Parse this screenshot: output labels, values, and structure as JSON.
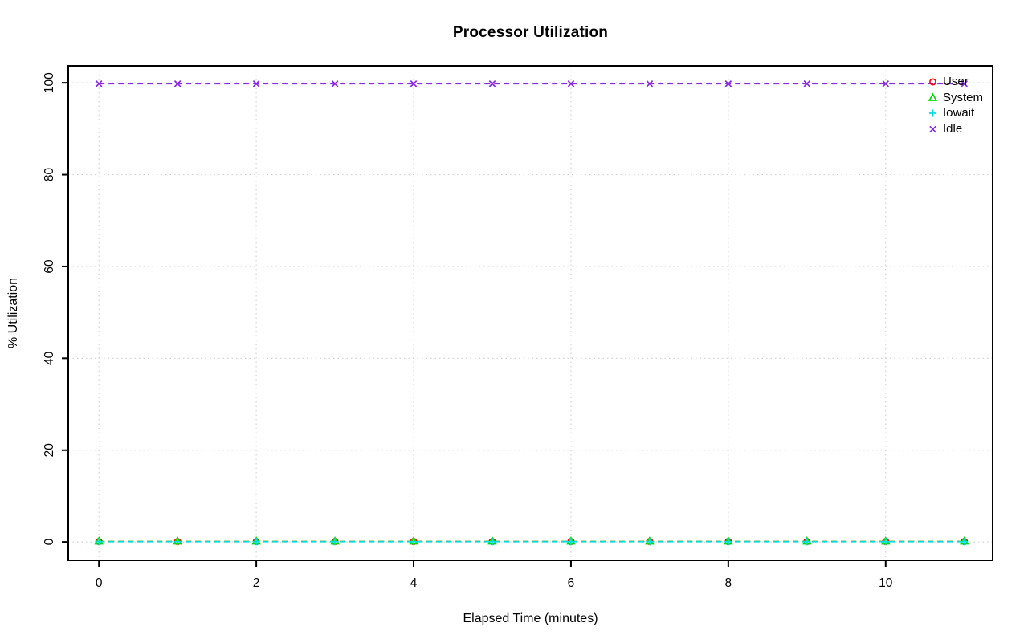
{
  "chart_data": {
    "type": "line",
    "title": "Processor Utilization",
    "xlabel": "Elapsed Time (minutes)",
    "ylabel": "% Utilization",
    "x": [
      0,
      1,
      2,
      3,
      4,
      5,
      6,
      7,
      8,
      9,
      10,
      11
    ],
    "series": [
      {
        "name": "User",
        "color": "#FF0000",
        "marker": "circle",
        "values": [
          0.1,
          0.1,
          0.1,
          0.1,
          0.1,
          0.1,
          0.1,
          0.1,
          0.1,
          0.1,
          0.1,
          0.1
        ]
      },
      {
        "name": "System",
        "color": "#00DD00",
        "marker": "triangle",
        "values": [
          0.1,
          0.1,
          0.1,
          0.1,
          0.1,
          0.1,
          0.1,
          0.1,
          0.1,
          0.1,
          0.1,
          0.1
        ]
      },
      {
        "name": "Iowait",
        "color": "#00DDE6",
        "marker": "plus",
        "values": [
          0.05,
          0.05,
          0.05,
          0.05,
          0.05,
          0.05,
          0.05,
          0.05,
          0.05,
          0.05,
          0.05,
          0.05
        ]
      },
      {
        "name": "Idle",
        "color": "#8A2BE2",
        "marker": "x",
        "values": [
          99.8,
          99.8,
          99.8,
          99.8,
          99.8,
          99.8,
          99.8,
          99.8,
          99.8,
          99.8,
          99.8,
          99.8
        ]
      }
    ],
    "xticks": [
      0,
      2,
      4,
      6,
      8,
      10
    ],
    "yticks": [
      0,
      20,
      40,
      60,
      80,
      100
    ],
    "xlim": [
      -0.39,
      11.36
    ],
    "ylim": [
      -4.0,
      103.7
    ],
    "grid": true,
    "grid_color": "#D3D3D3",
    "grid_style": "dotted",
    "line_style": "dashed",
    "axis_color": "#000000",
    "legend": {
      "position": "top-right",
      "border_color": "#000000",
      "background": "transparent"
    }
  }
}
